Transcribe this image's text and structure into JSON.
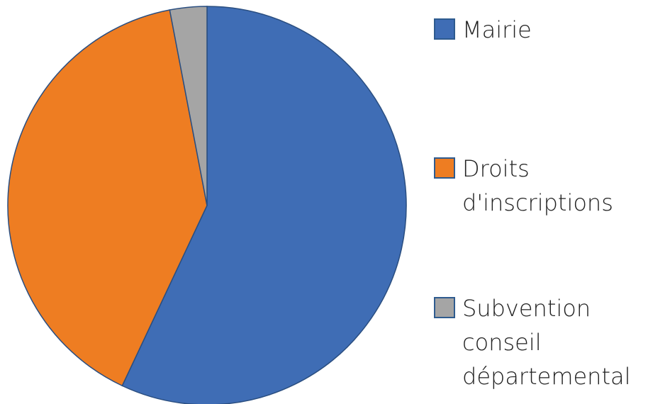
{
  "chart_data": {
    "type": "pie",
    "categories": [
      "Mairie",
      "Droits d'inscriptions",
      "Subvention conseil départemental"
    ],
    "values": [
      57,
      40,
      3
    ],
    "colors": [
      "#3f6db5",
      "#ee7d22",
      "#a5a5a5"
    ],
    "legend": "right"
  }
}
